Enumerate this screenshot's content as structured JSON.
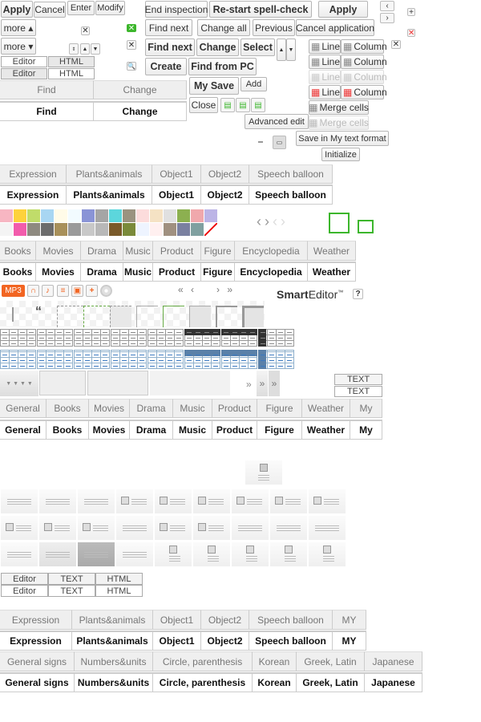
{
  "top_left": {
    "apply": "Apply",
    "cancel": "Cancel",
    "enter": "Enter",
    "modify": "Modify",
    "more_up": "more ▴",
    "more_down": "more ▾",
    "mode1": {
      "editor": "Editor",
      "html": "HTML"
    },
    "mode2": {
      "editor": "Editor",
      "html": "HTML"
    }
  },
  "find_tabs": {
    "inactive": [
      "Find",
      "Change"
    ],
    "active": [
      "Find",
      "Change"
    ]
  },
  "spell": {
    "end_inspection": "End inspection",
    "restart": "Re-start spell-check",
    "apply": "Apply"
  },
  "find_replace": {
    "find_next": "Find next",
    "change_all": "Change all",
    "previous": "Previous",
    "cancel_application": "Cancel application",
    "find_next_bold": "Find next",
    "change": "Change",
    "select": "Select",
    "create": "Create",
    "find_from_pc": "Find from PC",
    "my_save": "My Save",
    "add": "Add",
    "close": "Close",
    "advanced_edit": "Advanced edit",
    "save_my_text_format": "Save in My text format",
    "initialize": "Initialize"
  },
  "table_edit": {
    "rows": [
      [
        "Line",
        "Column"
      ],
      [
        "Line",
        "Column"
      ],
      [
        "Line",
        "Column"
      ],
      [
        "Line",
        "Column"
      ]
    ],
    "merge_cells": "Merge cells",
    "merge_cells_disabled": "Merge cells"
  },
  "sticker_tabs": [
    "Expression",
    "Plants&animals",
    "Object1",
    "Object2",
    "Speech balloon"
  ],
  "swatches_top": [
    "#f7b6c2",
    "#fdd23c",
    "#c0dc6a",
    "#a8d6f2",
    "#fffbe8",
    "#f2fbff",
    "#8a94d6",
    "#a5a5a5",
    "#5cd6dc",
    "#9a9380",
    "#fcdcdc",
    "#f5e2c4",
    "#e0e0e0",
    "#8cb050",
    "#f0a8ac",
    "#bcb4e6"
  ],
  "swatches_bottom": [
    "#f4f4f4",
    "#f25cac",
    "#8e8a80",
    "#6c6c6c",
    "#a8905a",
    "#9a9a9a",
    "#c8c8c8",
    "#b8b8b8",
    "#7a5a2a",
    "#7a8a3a",
    "#eef4ff",
    "#fff0f0",
    "#a09080",
    "#7a80a0",
    "#80a0a0",
    "#ffffff"
  ],
  "accent_green": "#3cb62c",
  "quote_tabs": [
    "Books",
    "Movies",
    "Drama",
    "Music",
    "Product",
    "Figure",
    "Encyclopedia",
    "Weather"
  ],
  "media": {
    "mp3": "MP3",
    "accent": "#f26522"
  },
  "logo": {
    "bold": "Smart",
    "light": "Editor",
    "tm": "™",
    "help": "?"
  },
  "pager": [
    "«",
    "‹",
    "›",
    "»"
  ],
  "text_buttons": [
    "TEXT",
    "TEXT"
  ],
  "more_arrows": [
    "»",
    "»",
    "»"
  ],
  "category_tabs": [
    "General",
    "Books",
    "Movies",
    "Drama",
    "Music",
    "Product",
    "Figure",
    "Weather",
    "My"
  ],
  "mode3": {
    "row1": [
      "Editor",
      "TEXT",
      "HTML"
    ],
    "row2": [
      "Editor",
      "TEXT",
      "HTML"
    ]
  },
  "sticker_tabs2": [
    "Expression",
    "Plants&animals",
    "Object1",
    "Object2",
    "Speech balloon",
    "MY"
  ],
  "symbol_tabs": [
    "General signs",
    "Numbers&units",
    "Circle, parenthesis",
    "Korean",
    "Greek, Latin",
    "Japanese"
  ]
}
